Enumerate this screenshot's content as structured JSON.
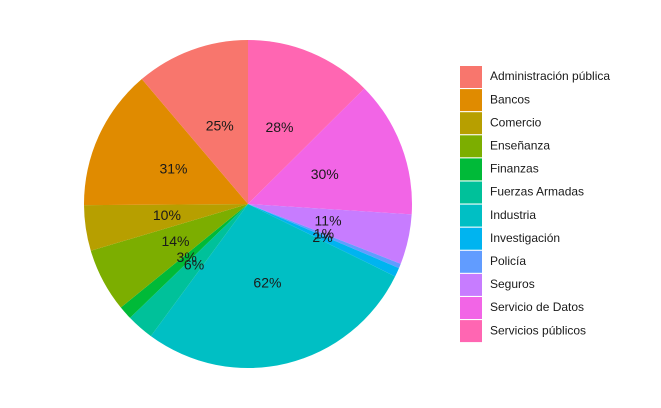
{
  "chart_data": {
    "type": "pie",
    "title": "",
    "legend_position": "right",
    "start": "top",
    "direction": "clockwise",
    "slices": [
      {
        "name": "Servicios públicos",
        "label": "28%",
        "value": 28,
        "color": "#FF66B2"
      },
      {
        "name": "Servicio de Datos",
        "label": "30%",
        "value": 30,
        "color": "#F265E6"
      },
      {
        "name": "Seguros",
        "label": "11%",
        "value": 11,
        "color": "#C77CFF"
      },
      {
        "name": "Policía",
        "label": "1%",
        "value": 1,
        "color": "#619CFF"
      },
      {
        "name": "Investigación",
        "label": "2%",
        "value": 2,
        "color": "#00B4F0"
      },
      {
        "name": "Industria",
        "label": "62%",
        "value": 62,
        "color": "#00BFC4"
      },
      {
        "name": "Fuerzas Armadas",
        "label": "6%",
        "value": 6,
        "color": "#00C19A"
      },
      {
        "name": "Finanzas",
        "label": "3%",
        "value": 3,
        "color": "#00BA38"
      },
      {
        "name": "Enseñanza",
        "label": "14%",
        "value": 14,
        "color": "#7CAE00"
      },
      {
        "name": "Comercio",
        "label": "10%",
        "value": 10,
        "color": "#B79F00"
      },
      {
        "name": "Bancos",
        "label": "31%",
        "value": 31,
        "color": "#E08B00"
      },
      {
        "name": "Administración pública",
        "label": "25%",
        "value": 25,
        "color": "#F8766D"
      }
    ],
    "legend": [
      {
        "label": "Administración pública",
        "color": "#F8766D"
      },
      {
        "label": "Bancos",
        "color": "#E08B00"
      },
      {
        "label": "Comercio",
        "color": "#B79F00"
      },
      {
        "label": "Enseñanza",
        "color": "#7CAE00"
      },
      {
        "label": "Finanzas",
        "color": "#00BA38"
      },
      {
        "label": "Fuerzas Armadas",
        "color": "#00C19A"
      },
      {
        "label": "Industria",
        "color": "#00BFC4"
      },
      {
        "label": "Investigación",
        "color": "#00B4F0"
      },
      {
        "label": "Policía",
        "color": "#619CFF"
      },
      {
        "label": "Seguros",
        "color": "#C77CFF"
      },
      {
        "label": "Servicio de Datos",
        "color": "#F265E6"
      },
      {
        "label": "Servicios públicos",
        "color": "#FF66B2"
      }
    ]
  }
}
